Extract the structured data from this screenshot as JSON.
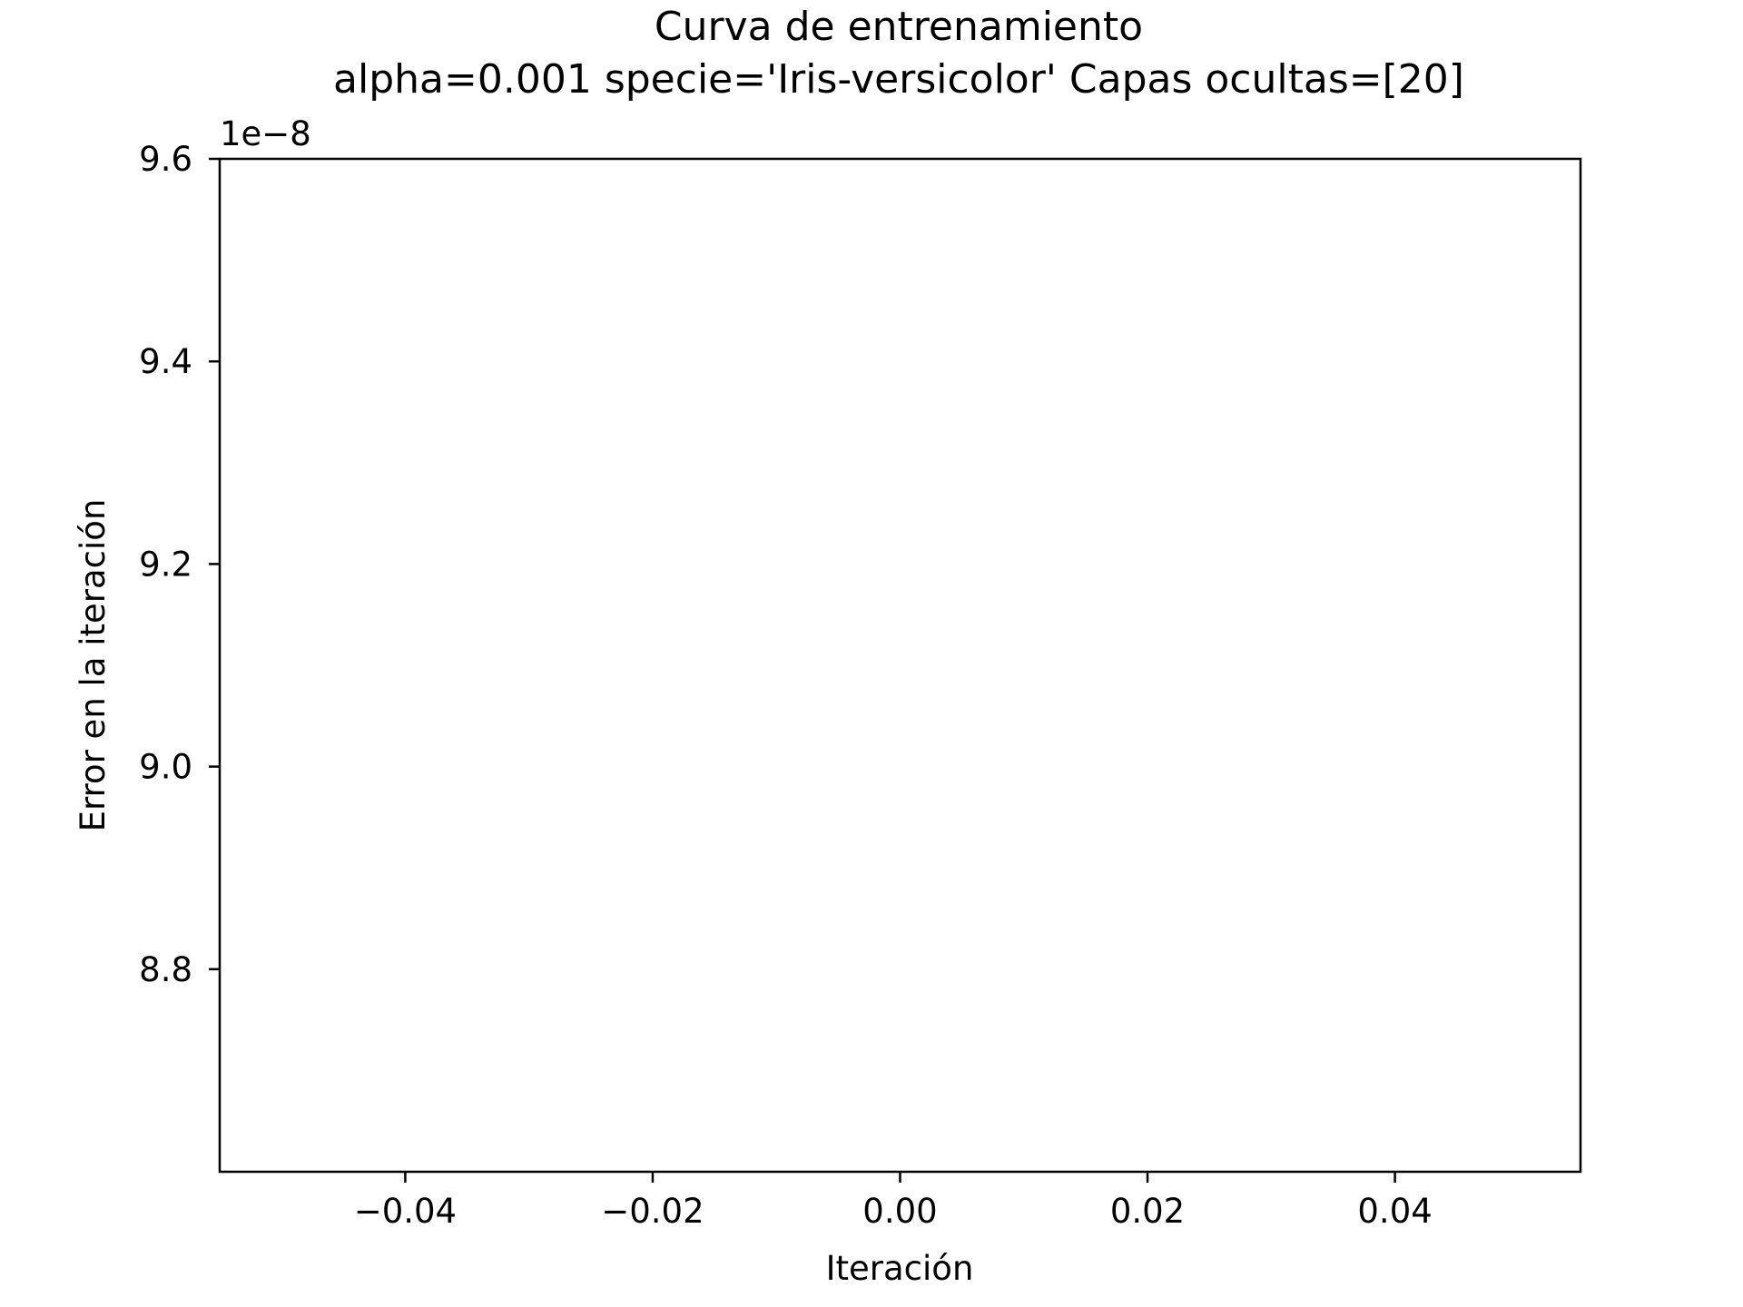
{
  "chart_data": {
    "type": "line",
    "title": "Curva de entrenamiento",
    "subtitle": "alpha=0.001 specie='Iris-versicolor' Capas ocultas=[20]",
    "xlabel": "Iteración",
    "ylabel": "Error en la iteración",
    "y_offset_label": "1e−8",
    "xlim": [
      -0.055,
      0.055
    ],
    "ylim": [
      8.6,
      9.6
    ],
    "x_ticks": [
      {
        "value": -0.04,
        "label": "−0.04"
      },
      {
        "value": -0.02,
        "label": "−0.02"
      },
      {
        "value": 0.0,
        "label": "0.00"
      },
      {
        "value": 0.02,
        "label": "0.02"
      },
      {
        "value": 0.04,
        "label": "0.04"
      }
    ],
    "y_ticks": [
      {
        "value": 8.8,
        "label": "8.8"
      },
      {
        "value": 9.0,
        "label": "9.0"
      },
      {
        "value": 9.2,
        "label": "9.2"
      },
      {
        "value": 9.4,
        "label": "9.4"
      },
      {
        "value": 9.6,
        "label": "9.6"
      }
    ],
    "series": [],
    "grid": false,
    "legend": "none",
    "colors": {
      "axes": "#000000",
      "background": "#ffffff"
    }
  }
}
